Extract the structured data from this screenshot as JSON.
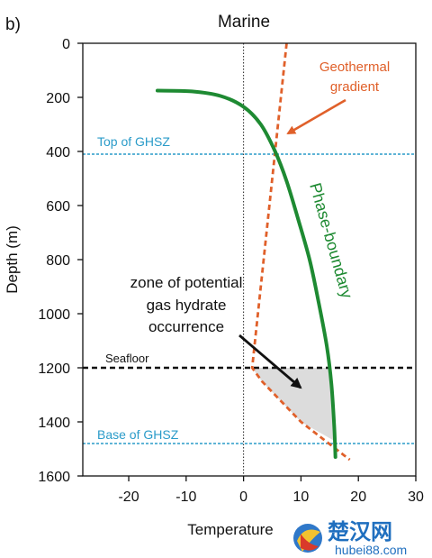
{
  "panel_label": "b)",
  "title": "Marine",
  "xlabel": "Temperature",
  "ylabel": "Depth (m)",
  "x_ticks": [
    -20,
    -10,
    0,
    10,
    20,
    30
  ],
  "y_ticks": [
    0,
    200,
    400,
    600,
    800,
    1000,
    1200,
    1400,
    1600
  ],
  "xlim": [
    -28,
    30
  ],
  "ylim": [
    0,
    1600
  ],
  "annotations": {
    "geothermal_line1": "Geothermal",
    "geothermal_line2": "gradient",
    "phase_boundary": "Phase-boundary",
    "zone_line1": "zone of potential",
    "zone_line2": "gas hydrate",
    "zone_line3": "occurrence",
    "seafloor": "Seafloor",
    "top_ghsz": "Top of GHSZ",
    "base_ghsz": "Base of GHSZ"
  },
  "watermark": {
    "cn": "楚汉网",
    "url": "hubei88.com"
  },
  "colors": {
    "phase_boundary": "#1e8a32",
    "geothermal": "#e0602a",
    "ghsz_lines": "#2a9bc9",
    "seafloor": "#111111",
    "zone_fill": "#d6d6d6",
    "watermark": "#1f6fbf"
  },
  "chart_data": {
    "type": "line",
    "title": "Marine",
    "xlabel": "Temperature",
    "ylabel": "Depth (m)",
    "xlim": [
      -28,
      30
    ],
    "ylim": [
      0,
      1600
    ],
    "y_inverted": true,
    "grid": false,
    "series": [
      {
        "x": [
          -15,
          -9,
          -4,
          0,
          3,
          5.5,
          7.5,
          9.5,
          11.5,
          13,
          14.5,
          15.3,
          15.8,
          16
        ],
        "y": [
          175,
          178,
          195,
          235,
          300,
          400,
          510,
          650,
          800,
          950,
          1120,
          1260,
          1420,
          1530
        ]
      },
      {
        "x": [
          7.5,
          1.5,
          3.2,
          10,
          18.5
        ],
        "y": [
          0,
          1200,
          1250,
          1400,
          1540
        ]
      }
    ],
    "reference_lines": [
      {
        "axis": "y",
        "value": 410
      },
      {
        "axis": "y",
        "value": 1200
      },
      {
        "axis": "y",
        "value": 1480
      },
      {
        "axis": "x",
        "value": 0
      }
    ],
    "shaded_region": {
      "x": [
        1.5,
        15.2,
        15.8,
        10,
        3.2
      ],
      "y": [
        1200,
        1200,
        1470,
        1400,
        1250
      ]
    }
  }
}
